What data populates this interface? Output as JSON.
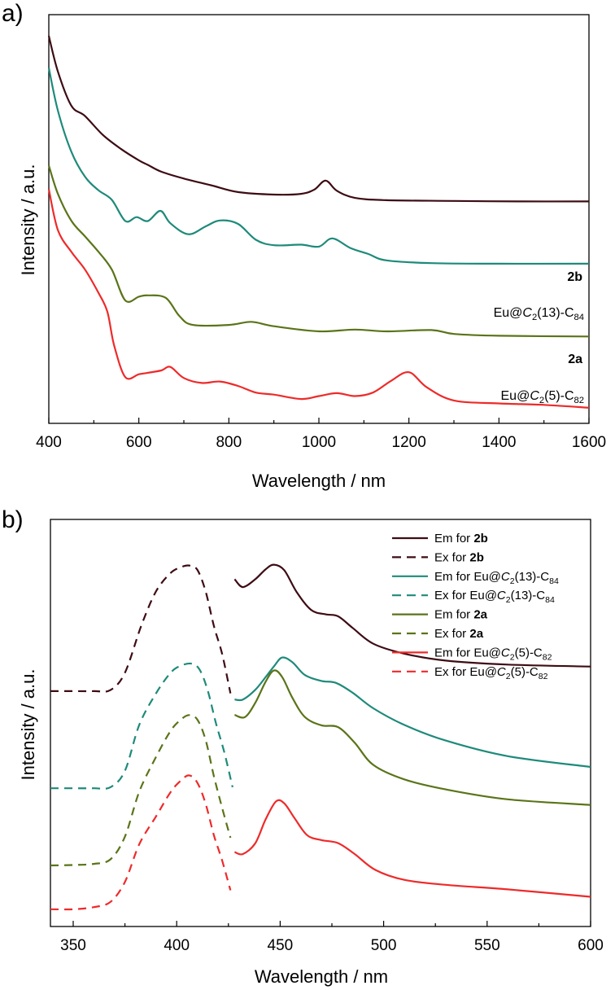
{
  "chart_data": [
    {
      "panel": "a)",
      "type": "line",
      "xlabel": "Wavelength / nm",
      "ylabel": "Intensity / a.u.",
      "xlim": [
        400,
        1600
      ],
      "ylim": [
        0,
        10
      ],
      "xticks": [
        "400",
        "600",
        "800",
        "1000",
        "1200",
        "1400",
        "1600"
      ],
      "series": [
        {
          "name": "2b",
          "color": "#3d0c14",
          "labelParts": [
            {
              "t": "2b",
              "s": "b"
            }
          ],
          "x": [
            400,
            420,
            450,
            480,
            520,
            560,
            600,
            620,
            650,
            700,
            760,
            820,
            900,
            960,
            990,
            1015,
            1040,
            1080,
            1150,
            1300,
            1450,
            1600
          ],
          "y": [
            10,
            8.6,
            7.25,
            6.85,
            6.1,
            5.55,
            5.1,
            4.92,
            4.65,
            4.38,
            4.12,
            3.85,
            3.75,
            3.78,
            3.95,
            4.3,
            3.9,
            3.62,
            3.53,
            3.5,
            3.48,
            3.48
          ]
        },
        {
          "name": "Eu@C2(13)-C84",
          "color": "#1e8a7a",
          "labelParts": [
            {
              "t": "Eu@",
              "s": ""
            },
            {
              "t": "C",
              "s": "i"
            },
            {
              "t": "2",
              "s": "sub"
            },
            {
              "t": "(13)-C",
              "s": ""
            },
            {
              "t": "84",
              "s": "sub"
            }
          ],
          "x": [
            400,
            420,
            450,
            480,
            510,
            540,
            570,
            595,
            620,
            648,
            670,
            710,
            750,
            780,
            820,
            860,
            900,
            960,
            1000,
            1030,
            1070,
            1110,
            1150,
            1250,
            1400,
            1600
          ],
          "y": [
            9.55,
            8.0,
            6.5,
            5.6,
            5.1,
            4.75,
            3.98,
            4.12,
            3.98,
            4.35,
            3.9,
            3.5,
            3.8,
            4.0,
            3.88,
            3.3,
            3.1,
            3.12,
            3.05,
            3.35,
            3.0,
            2.78,
            2.55,
            2.45,
            2.43,
            2.43
          ]
        },
        {
          "name": "2a",
          "color": "#5a7419",
          "labelParts": [
            {
              "t": "2a",
              "s": "b"
            }
          ],
          "x": [
            400,
            420,
            450,
            480,
            510,
            540,
            570,
            600,
            620,
            660,
            690,
            720,
            800,
            850,
            900,
            1000,
            1080,
            1150,
            1250,
            1300,
            1400,
            1600
          ],
          "y": [
            8.0,
            6.9,
            5.85,
            5.25,
            4.65,
            3.95,
            2.75,
            2.9,
            2.95,
            2.85,
            2.15,
            1.8,
            1.8,
            1.92,
            1.75,
            1.55,
            1.62,
            1.55,
            1.6,
            1.45,
            1.38,
            1.35
          ]
        },
        {
          "name": "Eu@C2(5)-C82",
          "color": "#ee2a2a",
          "labelParts": [
            {
              "t": "Eu@",
              "s": ""
            },
            {
              "t": "C",
              "s": "i"
            },
            {
              "t": "2",
              "s": "sub"
            },
            {
              "t": "(5)-C",
              "s": ""
            },
            {
              "t": "82",
              "s": "sub"
            }
          ],
          "x": [
            400,
            420,
            450,
            480,
            510,
            530,
            545,
            570,
            600,
            620,
            650,
            670,
            700,
            740,
            780,
            820,
            860,
            900,
            960,
            1000,
            1040,
            1080,
            1120,
            1160,
            1200,
            1240,
            1300,
            1400,
            1500,
            1600
          ],
          "y": [
            7.7,
            6.3,
            5.55,
            4.95,
            4.15,
            3.5,
            2.35,
            1.25,
            1.35,
            1.4,
            1.48,
            1.6,
            1.22,
            1.05,
            1.1,
            0.95,
            0.72,
            0.65,
            0.5,
            0.6,
            0.7,
            0.6,
            0.72,
            1.12,
            1.42,
            0.9,
            0.45,
            0.35,
            0.3,
            0.2
          ]
        }
      ]
    },
    {
      "panel": "b)",
      "type": "line",
      "xlabel": "Wavelength / nm",
      "ylabel": "Intensity / a.u.",
      "xlim": [
        339,
        600
      ],
      "ylim": [
        0,
        10
      ],
      "xticks": [
        "350",
        "400",
        "450",
        "500",
        "550",
        "600"
      ],
      "legend": "top-right",
      "series": [
        {
          "name": "Em for 2b",
          "color": "#3d0c14",
          "dash": false,
          "labelParts": [
            {
              "t": "Em for ",
              "s": ""
            },
            {
              "t": "2b",
              "s": "b"
            }
          ],
          "x": [
            428,
            432,
            438,
            443,
            447,
            452,
            458,
            465,
            472,
            478,
            485,
            495,
            510,
            530,
            560,
            600
          ],
          "y": [
            8.55,
            8.15,
            8.55,
            9.05,
            9.28,
            9.0,
            7.9,
            7.0,
            6.78,
            6.68,
            6.1,
            5.3,
            4.8,
            4.45,
            4.25,
            4.15
          ]
        },
        {
          "name": "Ex for 2b",
          "color": "#3d0c14",
          "dash": true,
          "labelParts": [
            {
              "t": "Ex for ",
              "s": ""
            },
            {
              "t": "2b",
              "s": "b"
            }
          ],
          "x": [
            339,
            350,
            360,
            368,
            375,
            383,
            390,
            397,
            402,
            406,
            410,
            414,
            418,
            422,
            426
          ],
          "y": [
            3.5,
            3.5,
            3.5,
            3.55,
            4.35,
            6.55,
            8.1,
            8.95,
            9.22,
            9.3,
            9.1,
            8.1,
            6.5,
            5.2,
            3.4
          ]
        },
        {
          "name": "Em for Eu@C2(13)-C84",
          "color": "#1e8a7a",
          "dash": false,
          "labelParts": [
            {
              "t": "Em for Eu@",
              "s": ""
            },
            {
              "t": "C",
              "s": "i"
            },
            {
              "t": "2",
              "s": "sub"
            },
            {
              "t": "(13)-C",
              "s": ""
            },
            {
              "t": "84",
              "s": "sub"
            }
          ],
          "x": [
            428,
            432,
            438,
            443,
            447,
            451,
            456,
            462,
            470,
            477,
            485,
            495,
            510,
            530,
            560,
            600
          ],
          "y": [
            5.95,
            5.95,
            6.45,
            7.1,
            7.65,
            8.1,
            7.85,
            7.2,
            6.9,
            6.8,
            6.3,
            5.5,
            4.65,
            3.85,
            3.05,
            2.5
          ]
        },
        {
          "name": "Ex for Eu@C2(13)-C84",
          "color": "#1e8a7a",
          "dash": true,
          "labelParts": [
            {
              "t": "Ex for Eu@",
              "s": ""
            },
            {
              "t": "C",
              "s": "i"
            },
            {
              "t": "2",
              "s": "sub"
            },
            {
              "t": "(13)-C",
              "s": ""
            },
            {
              "t": "84",
              "s": "sub"
            }
          ],
          "x": [
            339,
            350,
            360,
            368,
            375,
            382,
            390,
            397,
            402,
            407,
            411,
            415,
            419,
            423,
            427
          ],
          "y": [
            1.85,
            1.85,
            1.85,
            1.9,
            2.7,
            4.95,
            6.45,
            7.45,
            7.8,
            7.9,
            7.62,
            6.6,
            5.0,
            3.6,
            1.9
          ]
        },
        {
          "name": "Em for 2a",
          "color": "#5a7419",
          "dash": false,
          "labelParts": [
            {
              "t": "Em for ",
              "s": ""
            },
            {
              "t": "2a",
              "s": "b"
            }
          ],
          "x": [
            428,
            433,
            438,
            443,
            447,
            451,
            456,
            462,
            470,
            478,
            486,
            495,
            510,
            530,
            560,
            600
          ],
          "y": [
            6.15,
            6.05,
            6.7,
            7.65,
            8.15,
            7.85,
            6.9,
            6.05,
            5.68,
            5.6,
            4.9,
            3.9,
            3.25,
            2.8,
            2.35,
            2.1
          ]
        },
        {
          "name": "Ex for 2a",
          "color": "#5a7419",
          "dash": true,
          "labelParts": [
            {
              "t": "Ex for ",
              "s": ""
            },
            {
              "t": "2a",
              "s": "b"
            }
          ],
          "x": [
            339,
            350,
            360,
            368,
            375,
            382,
            390,
            397,
            402,
            406,
            410,
            414,
            418,
            422,
            426
          ],
          "y": [
            0.68,
            0.7,
            0.75,
            0.95,
            1.95,
            3.95,
            5.45,
            6.6,
            7.1,
            7.3,
            7.1,
            6.2,
            4.6,
            3.2,
            1.9
          ]
        },
        {
          "name": "Em for Eu@C2(5)-C82",
          "color": "#ee2a2a",
          "dash": false,
          "labelParts": [
            {
              "t": "Em for Eu@",
              "s": ""
            },
            {
              "t": "C",
              "s": "i"
            },
            {
              "t": "2",
              "s": "sub"
            },
            {
              "t": "(5)-C",
              "s": ""
            },
            {
              "t": "82",
              "s": "sub"
            }
          ],
          "x": [
            428,
            432,
            438,
            443,
            448,
            452,
            457,
            463,
            470,
            478,
            486,
            496,
            510,
            530,
            560,
            600
          ],
          "y": [
            2.6,
            2.5,
            3.05,
            4.25,
            5.15,
            5.05,
            4.3,
            3.45,
            3.2,
            3.05,
            2.5,
            1.7,
            1.2,
            0.95,
            0.72,
            0.35
          ]
        },
        {
          "name": "Ex for Eu@C2(5)-C82",
          "color": "#ee2a2a",
          "dash": true,
          "labelParts": [
            {
              "t": "Ex for Eu@",
              "s": ""
            },
            {
              "t": "C",
              "s": "i"
            },
            {
              "t": "2",
              "s": "sub"
            },
            {
              "t": "(5)-C",
              "s": ""
            },
            {
              "t": "82",
              "s": "sub"
            }
          ],
          "x": [
            339,
            350,
            360,
            368,
            375,
            382,
            390,
            397,
            402,
            406,
            410,
            414,
            418,
            422,
            426
          ],
          "y": [
            0.2,
            0.2,
            0.3,
            0.55,
            1.5,
            3.3,
            4.6,
            5.75,
            6.3,
            6.55,
            6.2,
            5.2,
            3.7,
            2.5,
            1.1
          ]
        }
      ]
    }
  ]
}
